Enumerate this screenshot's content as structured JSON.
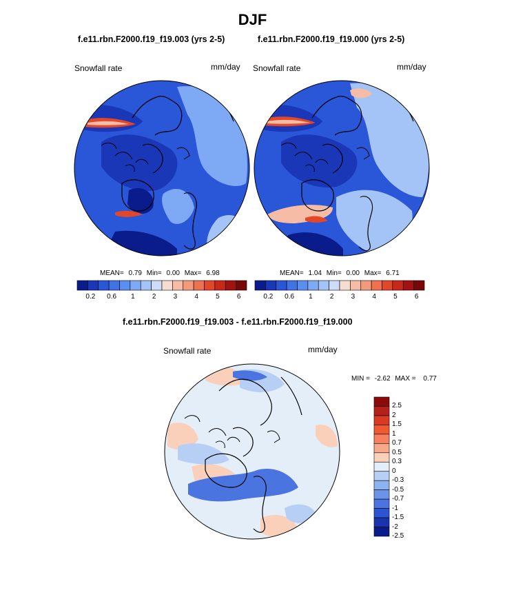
{
  "figure": {
    "title": "DJF"
  },
  "panels": [
    {
      "subtitle": "f.e11.rbn.F2000.f19_f19.003 (yrs 2-5)",
      "variable_label": "Snowfall rate",
      "units_label": "mm/day",
      "stats": {
        "mean_label": "MEAN=",
        "mean": "0.79",
        "min_label": "Min=",
        "min": "0.00",
        "max_label": "Max=",
        "max": "6.98"
      }
    },
    {
      "subtitle": "f.e11.rbn.F2000.f19_f19.000 (yrs 2-5)",
      "variable_label": "Snowfall rate",
      "units_label": "mm/day",
      "stats": {
        "mean_label": "MEAN=",
        "mean": "1.04",
        "min_label": "Min=",
        "min": "0.00",
        "max_label": "Max=",
        "max": "6.71"
      }
    }
  ],
  "difference_panel": {
    "subtitle": "f.e11.rbn.F2000.f19_f19.003 - f.e11.rbn.F2000.f19_f19.000",
    "variable_label": "Snowfall rate",
    "units_label": "mm/day",
    "stats": {
      "min_label": "MIN =",
      "min": "-2.62",
      "max_label": "MAX =",
      "max": "0.77"
    }
  },
  "colorbars": {
    "absolute": {
      "orientation": "horizontal",
      "colors": [
        "#0a1c8c",
        "#1a37b8",
        "#2a56d8",
        "#3f73e6",
        "#5a8ef0",
        "#7ea9f4",
        "#a4c4f7",
        "#cddcf8",
        "#f7dcd0",
        "#f6bca5",
        "#f39a7c",
        "#ee7250",
        "#e2472a",
        "#c8271a",
        "#a01312",
        "#780808"
      ],
      "tick_labels": [
        "0.2",
        "0.6",
        "1",
        "2",
        "3",
        "4",
        "5",
        "6"
      ]
    },
    "difference": {
      "orientation": "vertical",
      "colors_top_to_bottom": [
        "#8b0b0b",
        "#b4201a",
        "#da3a22",
        "#f05a30",
        "#f68060",
        "#f8a98c",
        "#fbd0bb",
        "#e4eef9",
        "#b7cff5",
        "#8eb2f0",
        "#6b93ea",
        "#4a74e0",
        "#2d54d2",
        "#1a34b0",
        "#0a1c8c"
      ],
      "tick_labels_top_to_bottom": [
        "2.5",
        "2",
        "1.5",
        "1",
        "0.7",
        "0.5",
        "0.3",
        "0",
        "-0.3",
        "-0.5",
        "-0.7",
        "-1",
        "-1.5",
        "-2",
        "-2.5"
      ]
    }
  },
  "map_colors": {
    "absolute_base": "#2a56d8",
    "absolute_dark": "#0a1c8c",
    "absolute_mid": "#1a37b8",
    "absolute_light": "#7ea9f4",
    "absolute_pale": "#a4c4f7",
    "absolute_peak": "#e2472a",
    "absolute_peach": "#f6bca5",
    "diff_base": "#e4eef9",
    "diff_pale_blue": "#b7cff5",
    "diff_blue": "#4a74e0",
    "diff_peach": "#fbd0bb",
    "coastline": "#000000"
  }
}
